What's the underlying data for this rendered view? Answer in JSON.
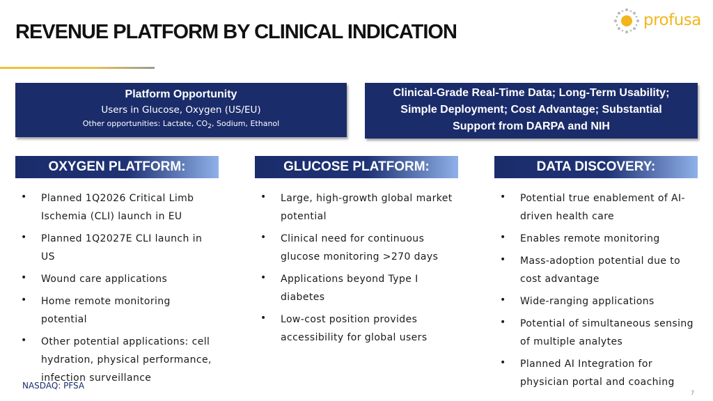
{
  "header": {
    "title": "REVENUE PLATFORM BY CLINICAL INDICATION",
    "logo": "profusa"
  },
  "summary": {
    "left": {
      "title": "Platform Opportunity",
      "line1": "Users in Glucose, Oxygen (US/EU)",
      "line2": [
        "Other opportunities: Lactate, CO",
        "2",
        ", Sodium, Ethanol"
      ]
    },
    "right": {
      "text": "Clinical-Grade Real-Time Data; Long-Term Usability; Simple Deployment; Cost Advantage; Substantial Support from DARPA and NIH"
    }
  },
  "columns": [
    {
      "heading": "OXYGEN PLATFORM:",
      "bullets": [
        "Planned 1Q2026 Critical Limb Ischemia (CLI) launch in EU",
        "Planned 1Q2027E CLI launch in US",
        "Wound care applications",
        "Home remote monitoring potential",
        "Other potential applications: cell hydration, physical performance, infection surveillance"
      ]
    },
    {
      "heading": "GLUCOSE PLATFORM:",
      "bullets": [
        "Large, high-growth global market potential",
        "Clinical need for continuous glucose monitoring >270 days",
        "Applications beyond Type I diabetes",
        "Low-cost position provides accessibility for global users"
      ]
    },
    {
      "heading": "DATA DISCOVERY:",
      "bullets": [
        "Potential true enablement of AI-driven health care",
        "Enables remote monitoring",
        "Mass-adoption potential due to cost advantage",
        "Wide-ranging applications",
        "Potential of simultaneous sensing of multiple analytes",
        "Planned AI Integration for physician portal and coaching"
      ]
    }
  ],
  "footer": {
    "ticker": "NASDAQ: PFSA",
    "page": "7"
  }
}
